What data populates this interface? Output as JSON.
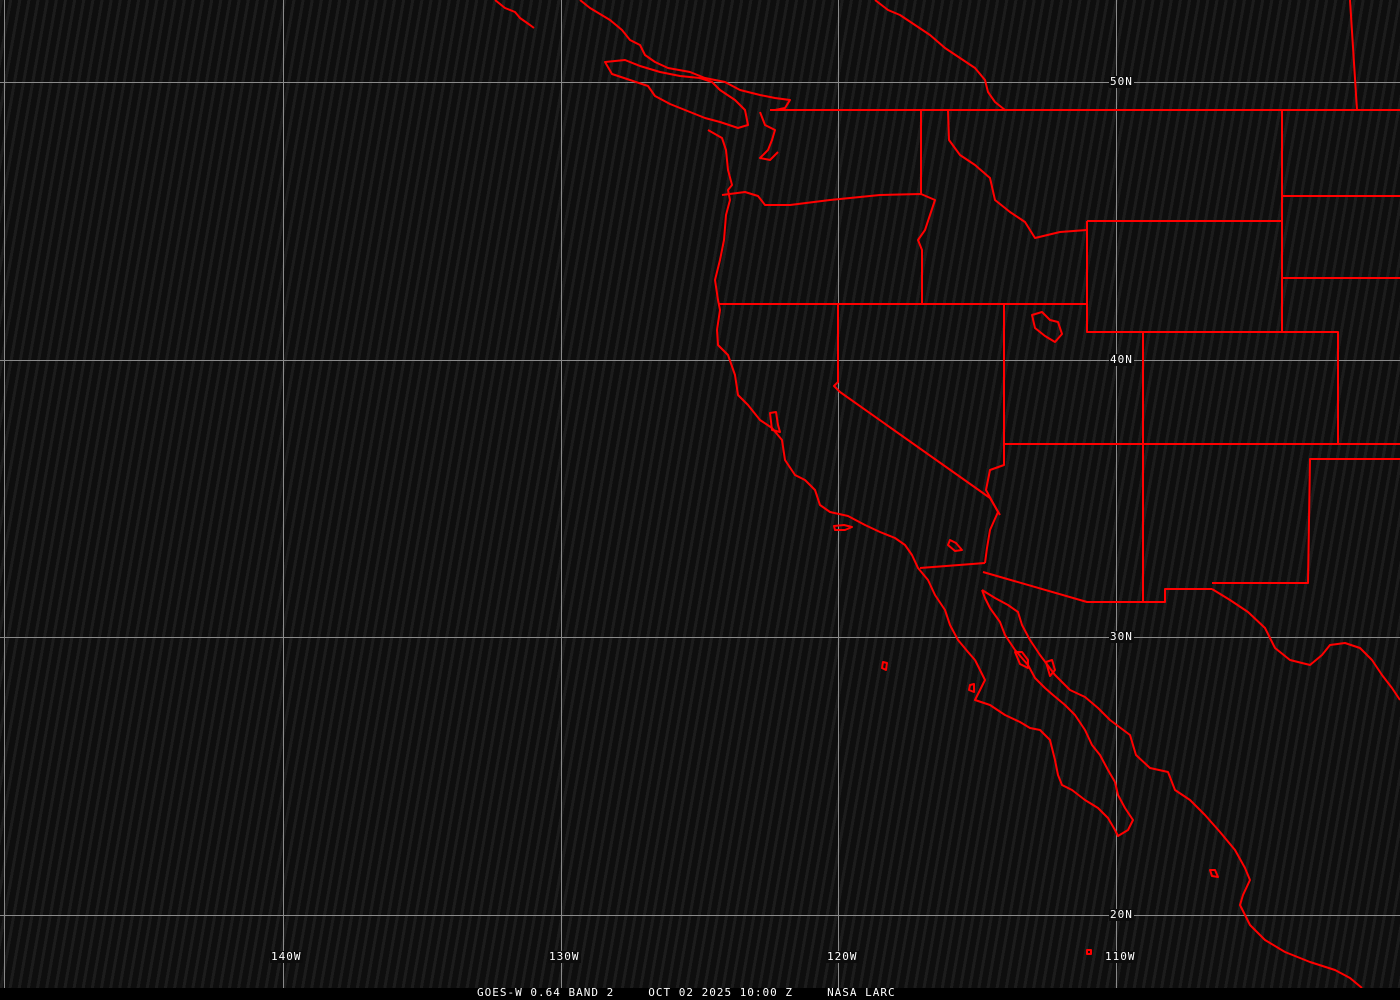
{
  "map": {
    "border_color": "#ff0000",
    "grid_color": "#8a8a8a",
    "background_color": "#0e0e0e",
    "latitude_labels": [
      "50N",
      "40N",
      "30N",
      "20N"
    ],
    "longitude_labels": [
      "140W",
      "130W",
      "120W",
      "110W"
    ]
  },
  "caption": {
    "product": "GOES-W 0.64 BAND 2",
    "datetime": "OCT 02 2025 10:00 Z",
    "source": "NASA LARC"
  }
}
